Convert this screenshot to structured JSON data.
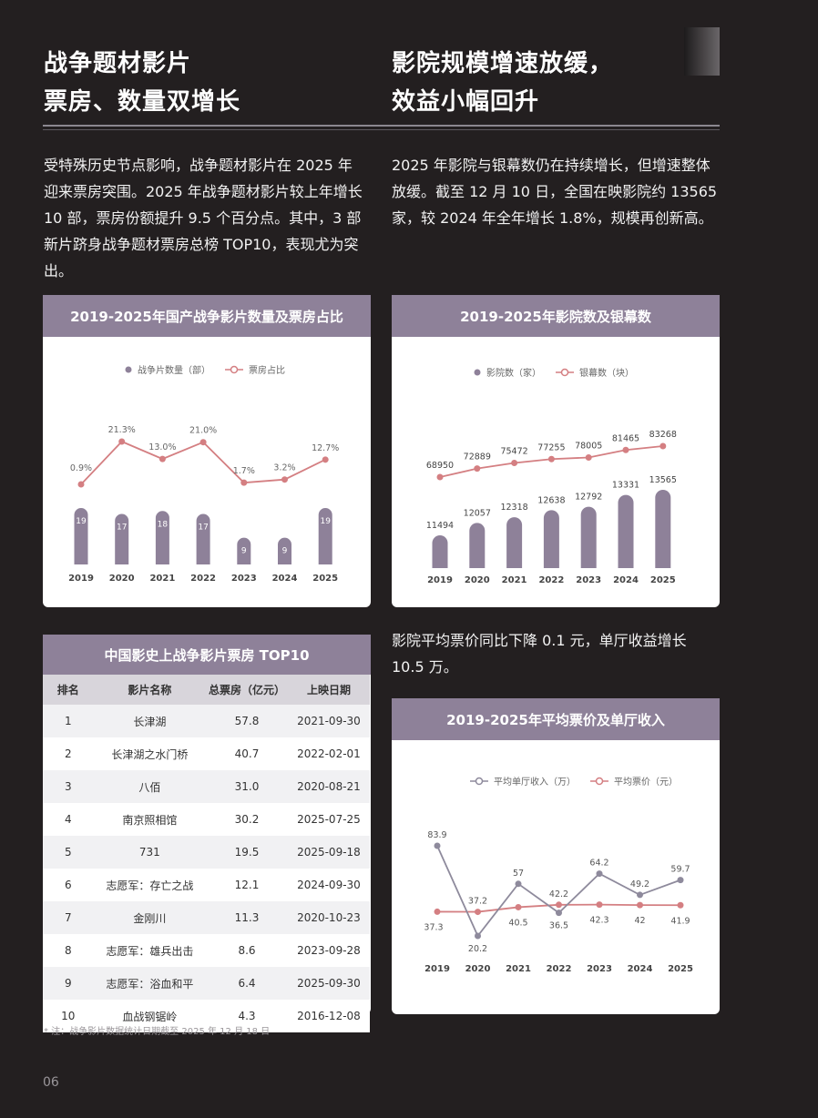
{
  "left_heading": {
    "line1": "战争题材影片",
    "line2": "票房、数量双增长"
  },
  "right_heading": {
    "line1": "影院规模增速放缓，",
    "line2": "效益小幅回升"
  },
  "left_paragraph": [
    "受特殊历史节点影响，战争题材影片在 2025 年",
    "迎来票房突围。2025 年战争题材影片较上年增长",
    "10 部，票房份额提升 9.5 个百分点。其中，3 部",
    "新片跻身战争题材票房总榜 TOP10，表现尤为突",
    "出。"
  ],
  "right_paragraph": [
    "2025 年影院与银幕数仍在持续增长，但增速整体",
    "放缓。截至 12 月 10 日，全国在映影院约 13565",
    "家，较 2024 年全年增长 1.8%，规模再创新高。"
  ],
  "right_paragraph2": [
    "影院平均票价同比下降 0.1 元，单厅收益增长",
    "10.5 万。"
  ],
  "table": {
    "title": "中国影史上战争影片票房 TOP10",
    "headers": [
      "排名",
      "影片名称",
      "总票房（亿元）",
      "上映日期"
    ],
    "rows": [
      [
        "1",
        "长津湖",
        "57.8",
        "2021-09-30"
      ],
      [
        "2",
        "长津湖之水门桥",
        "40.7",
        "2022-02-01"
      ],
      [
        "3",
        "八佰",
        "31.0",
        "2020-08-21"
      ],
      [
        "4",
        "南京照相馆",
        "30.2",
        "2025-07-25"
      ],
      [
        "5",
        "731",
        "19.5",
        "2025-09-18"
      ],
      [
        "6",
        "志愿军：存亡之战",
        "12.1",
        "2024-09-30"
      ],
      [
        "7",
        "金刚川",
        "11.3",
        "2020-10-23"
      ],
      [
        "8",
        "志愿军：雄兵出击",
        "8.6",
        "2023-09-28"
      ],
      [
        "9",
        "志愿军：浴血和平",
        "6.4",
        "2025-09-30"
      ],
      [
        "10",
        "血战钢锯岭",
        "4.3",
        "2016-12-08"
      ]
    ]
  },
  "footnote": "* 注：战争影片数据统计日期截至 2025 年 12 月 18 日",
  "page_number": "06",
  "colors": {
    "bar": "#8e8199",
    "line_pink": "#d47f82",
    "line_gray": "#8e8a9c",
    "header": "#8e8199"
  },
  "chart_data": [
    {
      "type": "bar",
      "title": "2019-2025年国产战争影片数量及票房占比",
      "categories": [
        "2019",
        "2020",
        "2021",
        "2022",
        "2023",
        "2024",
        "2025"
      ],
      "series": [
        {
          "name": "战争片数量（部）",
          "type": "bar",
          "values": [
            19,
            17,
            18,
            17,
            9,
            9,
            19
          ]
        },
        {
          "name": "票房占比",
          "type": "line",
          "values": [
            0.9,
            21.3,
            13.0,
            21.0,
            1.7,
            3.2,
            12.7
          ],
          "labels": [
            "0.9%",
            "21.3%",
            "13.0%",
            "21.0%",
            "1.7%",
            "3.2%",
            "12.7%"
          ]
        }
      ],
      "legend": "top-center"
    },
    {
      "type": "bar",
      "title": "2019-2025年影院数及银幕数",
      "categories": [
        "2019",
        "2020",
        "2021",
        "2022",
        "2023",
        "2024",
        "2025"
      ],
      "series": [
        {
          "name": "影院数（家）",
          "type": "bar",
          "values": [
            11494,
            12057,
            12318,
            12638,
            12792,
            13331,
            13565
          ]
        },
        {
          "name": "银幕数（块）",
          "type": "line",
          "values": [
            68950,
            72889,
            75472,
            77255,
            78005,
            81465,
            83268
          ]
        }
      ],
      "legend": "top-center"
    },
    {
      "type": "line",
      "title": "2019-2025年平均票价及单厅收入",
      "categories": [
        "2019",
        "2020",
        "2021",
        "2022",
        "2023",
        "2024",
        "2025"
      ],
      "series": [
        {
          "name": "平均单厅收入（万）",
          "values": [
            83.9,
            20.2,
            57.0,
            36.5,
            64.2,
            49.2,
            59.7
          ]
        },
        {
          "name": "平均票价（元）",
          "values": [
            37.3,
            37.2,
            40.5,
            42.2,
            42.3,
            42.0,
            41.9
          ]
        }
      ],
      "legend": "top-center"
    }
  ]
}
